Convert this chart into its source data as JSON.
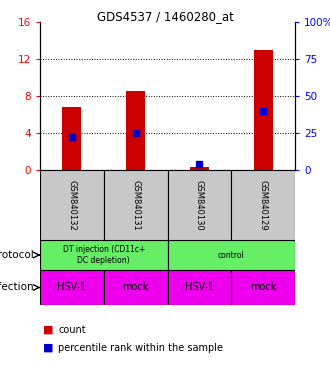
{
  "title": "GDS4537 / 1460280_at",
  "samples": [
    "GSM840132",
    "GSM840131",
    "GSM840130",
    "GSM840129"
  ],
  "red_counts": [
    6.8,
    8.5,
    0.3,
    13.0
  ],
  "blue_pct": [
    22.0,
    25.0,
    4.0,
    40.0
  ],
  "ylim_left": [
    0,
    16
  ],
  "ylim_right": [
    0,
    100
  ],
  "yticks_left": [
    0,
    4,
    8,
    12,
    16
  ],
  "yticks_right": [
    0,
    25,
    50,
    75,
    100
  ],
  "ytick_labels_left": [
    "0",
    "4",
    "8",
    "12",
    "16"
  ],
  "ytick_labels_right": [
    "0",
    "25",
    "50",
    "75",
    "100%"
  ],
  "infection_labels": [
    "HSV-1",
    "mock",
    "HSV-1",
    "mock"
  ],
  "infection_color": "#EE00EE",
  "bar_color": "#CC0000",
  "dot_color": "#0000CC",
  "bg_gray": "#C8C8C8",
  "proto_green": "#66EE66",
  "proto_green2": "#66EE66"
}
